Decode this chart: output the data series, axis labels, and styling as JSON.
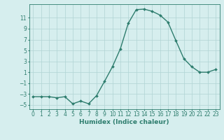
{
  "x": [
    0,
    1,
    2,
    3,
    4,
    5,
    6,
    7,
    8,
    9,
    10,
    11,
    12,
    13,
    14,
    15,
    16,
    17,
    18,
    19,
    20,
    21,
    22,
    23
  ],
  "y": [
    -3.5,
    -3.5,
    -3.5,
    -3.7,
    -3.5,
    -4.8,
    -4.3,
    -4.8,
    -3.3,
    -0.7,
    2.0,
    5.3,
    10.0,
    12.5,
    12.6,
    12.2,
    11.5,
    10.2,
    6.8,
    3.5,
    2.0,
    1.0,
    1.0,
    1.5
  ],
  "line_color": "#2e7d6e",
  "marker": "D",
  "marker_size": 2.0,
  "bg_color": "#d6eeee",
  "grid_color": "#b0d4d4",
  "xlabel": "Humidex (Indice chaleur)",
  "xlabel_fontsize": 6.5,
  "ylabel_ticks": [
    -5,
    -3,
    -1,
    1,
    3,
    5,
    7,
    9,
    11
  ],
  "xtick_labels": [
    "0",
    "1",
    "2",
    "3",
    "4",
    "5",
    "6",
    "7",
    "8",
    "9",
    "10",
    "11",
    "12",
    "13",
    "14",
    "15",
    "16",
    "17",
    "18",
    "19",
    "20",
    "21",
    "22",
    "23"
  ],
  "ylim": [
    -5.8,
    13.5
  ],
  "xlim": [
    -0.5,
    23.5
  ],
  "tick_color": "#2e7d6e",
  "tick_fontsize": 5.5,
  "line_width": 1.0
}
